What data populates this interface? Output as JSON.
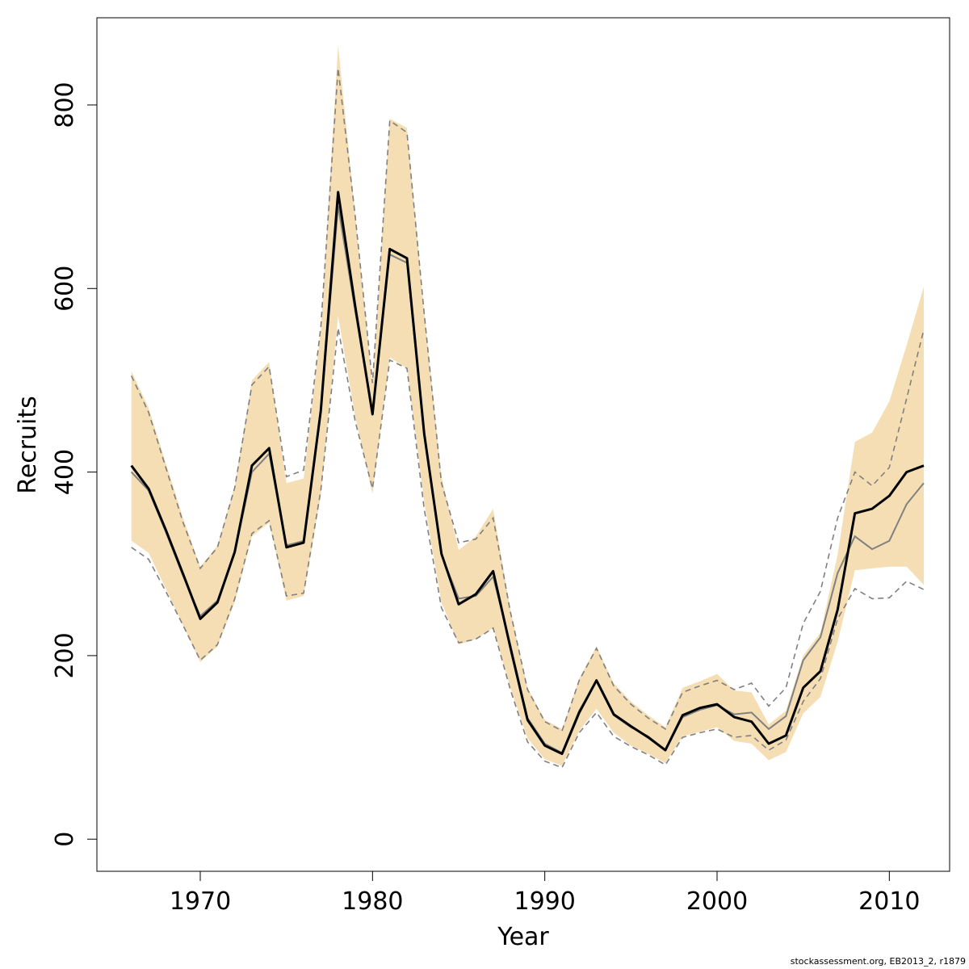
{
  "chart_data": {
    "type": "line",
    "xlabel": "Year",
    "ylabel": "Recruits",
    "xlim": [
      1964,
      2013.5
    ],
    "ylim": [
      -35,
      895
    ],
    "xticks": [
      1970,
      1980,
      1990,
      2000,
      2010
    ],
    "yticks": [
      0,
      200,
      400,
      600,
      800
    ],
    "colors": {
      "band": "#f5deb3",
      "estimate": "#000000",
      "alt_estimate": "#808080",
      "alt_interval": "#808080",
      "axis": "#000000"
    },
    "x": [
      1966,
      1967,
      1968,
      1969,
      1970,
      1971,
      1972,
      1973,
      1974,
      1975,
      1976,
      1977,
      1978,
      1979,
      1980,
      1981,
      1982,
      1983,
      1984,
      1985,
      1986,
      1987,
      1988,
      1989,
      1990,
      1991,
      1992,
      1993,
      1994,
      1995,
      1996,
      1997,
      1998,
      1999,
      2000,
      2001,
      2002,
      2003,
      2004,
      2005,
      2006,
      2007,
      2008,
      2009,
      2010,
      2011,
      2012
    ],
    "series": [
      {
        "role": "interval_band",
        "upper": [
          510,
          470,
          410,
          350,
          297,
          320,
          385,
          500,
          520,
          388,
          393,
          555,
          865,
          680,
          495,
          785,
          775,
          575,
          395,
          315,
          330,
          360,
          250,
          165,
          130,
          120,
          175,
          210,
          170,
          150,
          135,
          122,
          165,
          172,
          180,
          162,
          160,
          125,
          140,
          200,
          225,
          310,
          433,
          443,
          477,
          538,
          602
        ],
        "lower": [
          325,
          312,
          273,
          233,
          193,
          210,
          258,
          330,
          345,
          260,
          265,
          375,
          570,
          460,
          376,
          525,
          513,
          368,
          258,
          212,
          218,
          230,
          165,
          110,
          87,
          80,
          118,
          142,
          116,
          102,
          93,
          83,
          112,
          117,
          122,
          107,
          104,
          86,
          95,
          137,
          155,
          215,
          293,
          295,
          297,
          297,
          277
        ]
      },
      {
        "role": "estimate",
        "values": [
          407,
          382,
          337,
          289,
          240,
          258,
          313,
          407,
          426,
          318,
          323,
          467,
          705,
          580,
          463,
          643,
          633,
          442,
          311,
          256,
          267,
          292,
          209,
          130,
          102,
          93,
          138,
          173,
          136,
          123,
          111,
          97,
          135,
          143,
          147,
          133,
          128,
          104,
          113,
          165,
          183,
          250,
          355,
          360,
          374,
          400,
          407
        ]
      },
      {
        "role": "alt_estimate",
        "values": [
          400,
          380,
          335,
          287,
          243,
          260,
          312,
          400,
          420,
          320,
          325,
          465,
          690,
          575,
          465,
          637,
          628,
          440,
          310,
          262,
          265,
          286,
          212,
          132,
          104,
          94,
          140,
          172,
          135,
          122,
          112,
          97,
          133,
          141,
          146,
          136,
          138,
          120,
          134,
          195,
          220,
          290,
          330,
          316,
          325,
          365,
          388
        ]
      },
      {
        "role": "alt_upper",
        "values": [
          505,
          465,
          405,
          345,
          295,
          318,
          383,
          495,
          515,
          395,
          402,
          558,
          840,
          678,
          497,
          783,
          770,
          573,
          388,
          323,
          327,
          350,
          248,
          163,
          128,
          118,
          173,
          208,
          167,
          147,
          132,
          120,
          160,
          167,
          173,
          163,
          170,
          145,
          165,
          235,
          270,
          350,
          400,
          385,
          405,
          480,
          555
        ]
      },
      {
        "role": "alt_lower",
        "values": [
          318,
          305,
          270,
          233,
          195,
          212,
          262,
          333,
          347,
          265,
          268,
          380,
          557,
          455,
          382,
          522,
          513,
          360,
          252,
          214,
          218,
          230,
          163,
          106,
          85,
          78,
          116,
          138,
          112,
          101,
          92,
          81,
          111,
          116,
          120,
          111,
          113,
          97,
          108,
          150,
          175,
          240,
          273,
          262,
          263,
          281,
          272
        ]
      }
    ]
  },
  "credit": "stockassessment.org, EB2013_2, r1879"
}
